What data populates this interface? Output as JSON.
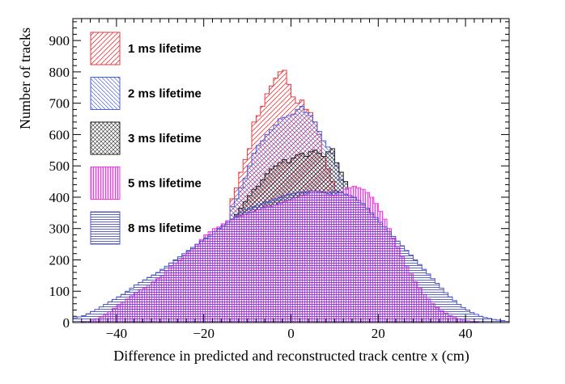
{
  "chart_data": {
    "type": "histogram",
    "xlabel": "Difference in predicted and reconstructed track centre x (cm)",
    "ylabel": "Number of tracks",
    "xlim": [
      -50,
      50
    ],
    "ylim": [
      0,
      970
    ],
    "x_ticks": [
      -40,
      -20,
      0,
      20,
      40
    ],
    "x_tick_labels": [
      "−40",
      "−20",
      "0",
      "20",
      "40"
    ],
    "y_ticks": [
      0,
      100,
      200,
      300,
      400,
      500,
      600,
      700,
      800,
      900
    ],
    "y_tick_labels": [
      "0",
      "100",
      "200",
      "300",
      "400",
      "500",
      "600",
      "700",
      "800",
      "900"
    ],
    "bin_width": 1,
    "legend_position": "top-left",
    "series": [
      {
        "name": "1 ms lifetime",
        "color": "#e8393d",
        "hatch": "diagonal-up",
        "peak_x": -2,
        "peak_y": 805,
        "x": [
          -50,
          -49,
          -48,
          -47,
          -46,
          -45,
          -44,
          -43,
          -42,
          -41,
          -40,
          -39,
          -38,
          -37,
          -36,
          -35,
          -34,
          -33,
          -32,
          -31,
          -30,
          -29,
          -28,
          -27,
          -26,
          -25,
          -24,
          -23,
          -22,
          -21,
          -20,
          -19,
          -18,
          -17,
          -16,
          -15,
          -14,
          -13,
          -12,
          -11,
          -10,
          -9,
          -8,
          -7,
          -6,
          -5,
          -4,
          -3,
          -2,
          -1,
          0,
          1,
          2,
          3,
          4,
          5,
          6,
          7,
          8,
          9,
          10,
          11,
          12,
          13,
          14,
          15,
          16,
          17,
          18,
          19,
          20,
          21,
          22,
          23,
          24,
          25,
          26,
          27,
          28,
          29,
          30,
          31,
          32,
          33,
          34,
          35,
          36,
          37,
          38,
          39,
          40,
          41,
          42,
          43,
          44,
          45,
          46,
          47,
          48,
          49
        ],
        "y": [
          0,
          0,
          0,
          0,
          0,
          0,
          0,
          0,
          0,
          0,
          0,
          0,
          0,
          0,
          0,
          0,
          0,
          0,
          0,
          0,
          0,
          0,
          0,
          0,
          0,
          2,
          5,
          10,
          20,
          40,
          65,
          100,
          145,
          200,
          245,
          290,
          395,
          430,
          480,
          520,
          555,
          640,
          660,
          690,
          730,
          755,
          780,
          800,
          805,
          760,
          720,
          700,
          710,
          680,
          670,
          640,
          600,
          530,
          490,
          450,
          420,
          380,
          330,
          280,
          230,
          180,
          130,
          90,
          60,
          40,
          20,
          10,
          5,
          2,
          0,
          0,
          0,
          0,
          0,
          0,
          0,
          0,
          0,
          0,
          0,
          0,
          0,
          0,
          0,
          0,
          0,
          0,
          0,
          0,
          0,
          0,
          0,
          0,
          0,
          0
        ]
      },
      {
        "name": "2 ms lifetime",
        "color": "#4a5de8",
        "hatch": "diagonal-down",
        "peak_x": 2,
        "peak_y": 690,
        "x": [
          -50,
          -49,
          -48,
          -47,
          -46,
          -45,
          -44,
          -43,
          -42,
          -41,
          -40,
          -39,
          -38,
          -37,
          -36,
          -35,
          -34,
          -33,
          -32,
          -31,
          -30,
          -29,
          -28,
          -27,
          -26,
          -25,
          -24,
          -23,
          -22,
          -21,
          -20,
          -19,
          -18,
          -17,
          -16,
          -15,
          -14,
          -13,
          -12,
          -11,
          -10,
          -9,
          -8,
          -7,
          -6,
          -5,
          -4,
          -3,
          -2,
          -1,
          0,
          1,
          2,
          3,
          4,
          5,
          6,
          7,
          8,
          9,
          10,
          11,
          12,
          13,
          14,
          15,
          16,
          17,
          18,
          19,
          20,
          21,
          22,
          23,
          24,
          25,
          26,
          27,
          28,
          29,
          30,
          31,
          32,
          33,
          34,
          35,
          36,
          37,
          38,
          39,
          40,
          41,
          42,
          43,
          44,
          45,
          46,
          47,
          48,
          49
        ],
        "y": [
          0,
          0,
          0,
          0,
          0,
          0,
          0,
          0,
          0,
          0,
          0,
          0,
          0,
          0,
          0,
          0,
          0,
          0,
          0,
          0,
          2,
          4,
          8,
          12,
          20,
          30,
          45,
          65,
          90,
          115,
          140,
          175,
          210,
          245,
          285,
          320,
          370,
          395,
          430,
          460,
          500,
          540,
          565,
          580,
          600,
          615,
          630,
          650,
          655,
          660,
          665,
          680,
          690,
          670,
          660,
          640,
          610,
          580,
          560,
          540,
          500,
          455,
          410,
          360,
          310,
          265,
          220,
          180,
          140,
          110,
          80,
          60,
          45,
          30,
          20,
          12,
          8,
          5,
          2,
          0,
          0,
          0,
          0,
          0,
          0,
          0,
          0,
          0,
          0,
          0,
          0,
          0,
          0,
          0,
          0,
          0,
          0,
          0,
          0,
          0
        ]
      },
      {
        "name": "3 ms lifetime",
        "color": "#222222",
        "hatch": "cross",
        "peak_x": 9,
        "peak_y": 555,
        "x": [
          -50,
          -49,
          -48,
          -47,
          -46,
          -45,
          -44,
          -43,
          -42,
          -41,
          -40,
          -39,
          -38,
          -37,
          -36,
          -35,
          -34,
          -33,
          -32,
          -31,
          -30,
          -29,
          -28,
          -27,
          -26,
          -25,
          -24,
          -23,
          -22,
          -21,
          -20,
          -19,
          -18,
          -17,
          -16,
          -15,
          -14,
          -13,
          -12,
          -11,
          -10,
          -9,
          -8,
          -7,
          -6,
          -5,
          -4,
          -3,
          -2,
          -1,
          0,
          1,
          2,
          3,
          4,
          5,
          6,
          7,
          8,
          9,
          10,
          11,
          12,
          13,
          14,
          15,
          16,
          17,
          18,
          19,
          20,
          21,
          22,
          23,
          24,
          25,
          26,
          27,
          28,
          29,
          30,
          31,
          32,
          33,
          34,
          35,
          36,
          37,
          38,
          39,
          40,
          41,
          42,
          43,
          44,
          45,
          46,
          47,
          48,
          49
        ],
        "y": [
          0,
          0,
          0,
          0,
          0,
          0,
          0,
          0,
          0,
          0,
          0,
          0,
          0,
          0,
          0,
          0,
          0,
          2,
          4,
          6,
          10,
          16,
          24,
          35,
          50,
          65,
          85,
          100,
          125,
          150,
          180,
          200,
          215,
          240,
          260,
          290,
          325,
          345,
          365,
          385,
          405,
          425,
          435,
          455,
          475,
          490,
          500,
          510,
          520,
          510,
          525,
          535,
          540,
          530,
          545,
          550,
          540,
          530,
          545,
          555,
          510,
          480,
          450,
          420,
          390,
          350,
          305,
          265,
          225,
          185,
          150,
          120,
          90,
          70,
          50,
          35,
          25,
          18,
          12,
          8,
          5,
          3,
          2,
          0,
          0,
          0,
          0,
          0,
          0,
          0,
          0,
          0,
          0,
          0,
          0,
          0,
          0,
          0,
          0,
          0
        ]
      },
      {
        "name": "5 ms lifetime",
        "color": "#ee3ce6",
        "hatch": "vertical",
        "peak_x": 14,
        "peak_y": 435,
        "x": [
          -50,
          -49,
          -48,
          -47,
          -46,
          -45,
          -44,
          -43,
          -42,
          -41,
          -40,
          -39,
          -38,
          -37,
          -36,
          -35,
          -34,
          -33,
          -32,
          -31,
          -30,
          -29,
          -28,
          -27,
          -26,
          -25,
          -24,
          -23,
          -22,
          -21,
          -20,
          -19,
          -18,
          -17,
          -16,
          -15,
          -14,
          -13,
          -12,
          -11,
          -10,
          -9,
          -8,
          -7,
          -6,
          -5,
          -4,
          -3,
          -2,
          -1,
          0,
          1,
          2,
          3,
          4,
          5,
          6,
          7,
          8,
          9,
          10,
          11,
          12,
          13,
          14,
          15,
          16,
          17,
          18,
          19,
          20,
          21,
          22,
          23,
          24,
          25,
          26,
          27,
          28,
          29,
          30,
          31,
          32,
          33,
          34,
          35,
          36,
          37,
          38,
          39,
          40,
          41,
          42,
          43,
          44,
          45,
          46,
          47,
          48,
          49
        ],
        "y": [
          0,
          0,
          2,
          4,
          8,
          12,
          18,
          25,
          35,
          45,
          55,
          65,
          75,
          85,
          95,
          105,
          110,
          120,
          130,
          140,
          150,
          165,
          180,
          190,
          200,
          215,
          225,
          235,
          250,
          265,
          280,
          290,
          300,
          305,
          315,
          325,
          330,
          335,
          340,
          345,
          350,
          355,
          360,
          365,
          370,
          370,
          375,
          380,
          385,
          390,
          395,
          400,
          405,
          410,
          415,
          420,
          420,
          415,
          410,
          405,
          410,
          415,
          425,
          430,
          435,
          430,
          425,
          415,
          400,
          380,
          355,
          330,
          300,
          270,
          240,
          210,
          180,
          155,
          130,
          110,
          90,
          75,
          60,
          48,
          38,
          30,
          22,
          16,
          12,
          8,
          5,
          3,
          2,
          0,
          0,
          0,
          0,
          0,
          0,
          0
        ]
      },
      {
        "name": "8 ms lifetime",
        "color": "#4a52c8",
        "hatch": "horizontal",
        "peak_x": 10,
        "peak_y": 420,
        "x": [
          -50,
          -49,
          -48,
          -47,
          -46,
          -45,
          -44,
          -43,
          -42,
          -41,
          -40,
          -39,
          -38,
          -37,
          -36,
          -35,
          -34,
          -33,
          -32,
          -31,
          -30,
          -29,
          -28,
          -27,
          -26,
          -25,
          -24,
          -23,
          -22,
          -21,
          -20,
          -19,
          -18,
          -17,
          -16,
          -15,
          -14,
          -13,
          -12,
          -11,
          -10,
          -9,
          -8,
          -7,
          -6,
          -5,
          -4,
          -3,
          -2,
          -1,
          0,
          1,
          2,
          3,
          4,
          5,
          6,
          7,
          8,
          9,
          10,
          11,
          12,
          13,
          14,
          15,
          16,
          17,
          18,
          19,
          20,
          21,
          22,
          23,
          24,
          25,
          26,
          27,
          28,
          29,
          30,
          31,
          32,
          33,
          34,
          35,
          36,
          37,
          38,
          39,
          40,
          41,
          42,
          43,
          44,
          45,
          46,
          47,
          48,
          49
        ],
        "y": [
          15,
          18,
          22,
          28,
          35,
          42,
          50,
          58,
          66,
          74,
          82,
          90,
          100,
          110,
          120,
          128,
          136,
          144,
          152,
          160,
          170,
          180,
          190,
          200,
          210,
          220,
          230,
          240,
          250,
          260,
          270,
          280,
          290,
          300,
          310,
          320,
          330,
          340,
          350,
          360,
          365,
          370,
          375,
          380,
          385,
          390,
          395,
          400,
          405,
          410,
          412,
          414,
          416,
          418,
          420,
          420,
          418,
          416,
          414,
          418,
          420,
          415,
          410,
          405,
          400,
          390,
          380,
          365,
          350,
          335,
          320,
          305,
          290,
          275,
          260,
          245,
          230,
          215,
          200,
          185,
          170,
          155,
          140,
          125,
          110,
          95,
          82,
          70,
          58,
          48,
          40,
          32,
          26,
          20,
          16,
          13,
          10,
          8,
          6,
          4
        ]
      }
    ]
  }
}
